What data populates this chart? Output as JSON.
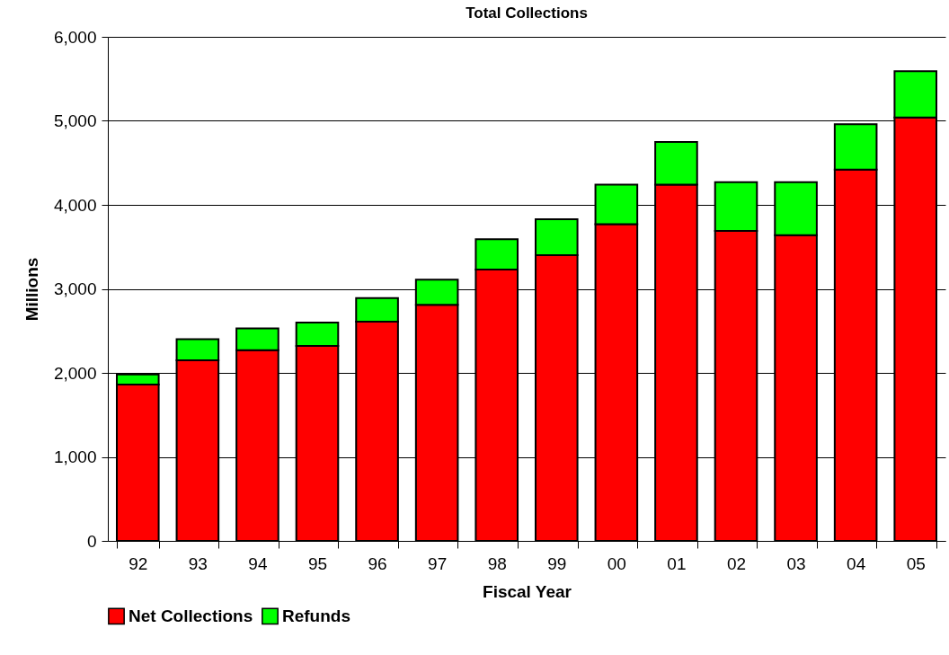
{
  "chart_data": {
    "type": "bar",
    "title": "Total Collections",
    "xlabel": "Fiscal Year",
    "ylabel": "Millions",
    "categories": [
      "92",
      "93",
      "94",
      "95",
      "96",
      "97",
      "98",
      "99",
      "00",
      "01",
      "02",
      "03",
      "04",
      "05"
    ],
    "series": [
      {
        "name": "Net Collections",
        "color": "#ff0000",
        "values": [
          1860,
          2150,
          2270,
          2320,
          2610,
          2810,
          3230,
          3400,
          3770,
          4240,
          3690,
          3640,
          4420,
          5040
        ]
      },
      {
        "name": "Refunds",
        "color": "#00ff00",
        "values": [
          120,
          250,
          260,
          280,
          280,
          300,
          360,
          430,
          470,
          510,
          580,
          630,
          540,
          550
        ]
      }
    ],
    "stacked": true,
    "ylim": [
      0,
      6000
    ],
    "yticks": [
      {
        "value": 0,
        "label": "0"
      },
      {
        "value": 1000,
        "label": "1,000"
      },
      {
        "value": 2000,
        "label": "2,000"
      },
      {
        "value": 3000,
        "label": "3,000"
      },
      {
        "value": 4000,
        "label": "4,000"
      },
      {
        "value": 5000,
        "label": "5,000"
      },
      {
        "value": 6000,
        "label": "6,000"
      }
    ],
    "grid": "y",
    "legend": "bottom"
  }
}
